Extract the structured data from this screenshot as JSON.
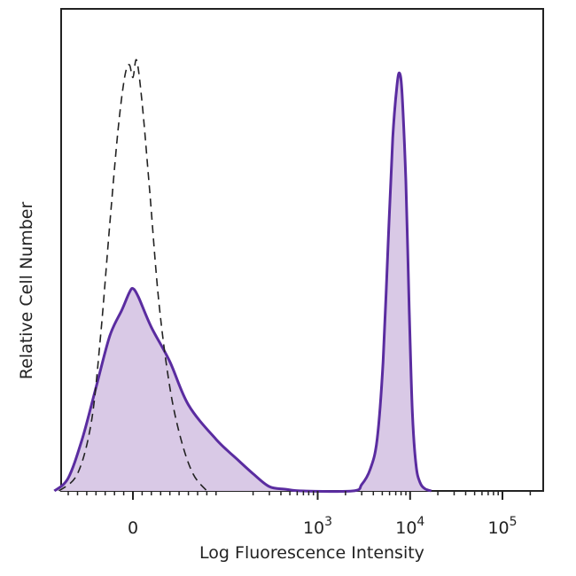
{
  "chart_data": {
    "type": "area",
    "title": "",
    "xlabel": "Log Fluorescence Intensity",
    "ylabel": "Relative Cell Number",
    "x_scale": "biexponential",
    "xlim": [
      -100,
      200000
    ],
    "ylim": [
      0,
      100
    ],
    "grid": false,
    "legend": "none",
    "x_ticks": [
      {
        "value": 0,
        "base": "0",
        "exp": ""
      },
      {
        "value": 1000,
        "base": "10",
        "exp": "3"
      },
      {
        "value": 10000,
        "base": "10",
        "exp": "4"
      },
      {
        "value": 100000,
        "base": "10",
        "exp": "5"
      }
    ],
    "series": [
      {
        "style": "dashed",
        "color": "#222222",
        "points": [
          [
            -80,
            0
          ],
          [
            -60,
            4
          ],
          [
            -45,
            16
          ],
          [
            -35,
            36
          ],
          [
            -25,
            62
          ],
          [
            -16,
            84
          ],
          [
            -9,
            96
          ],
          [
            -4,
            99
          ],
          [
            0,
            96
          ],
          [
            4,
            100
          ],
          [
            10,
            90
          ],
          [
            18,
            70
          ],
          [
            28,
            44
          ],
          [
            40,
            24
          ],
          [
            52,
            12
          ],
          [
            65,
            4
          ],
          [
            80,
            0
          ]
        ]
      },
      {
        "style": "filled",
        "color": "#5a2ca0",
        "fill": "#d9c9e6",
        "points": [
          [
            -85,
            0
          ],
          [
            -70,
            3
          ],
          [
            -55,
            12
          ],
          [
            -40,
            24
          ],
          [
            -25,
            36
          ],
          [
            -12,
            42
          ],
          [
            -4,
            46
          ],
          [
            0,
            47
          ],
          [
            6,
            45
          ],
          [
            20,
            38
          ],
          [
            40,
            30
          ],
          [
            60,
            20
          ],
          [
            90,
            12
          ],
          [
            140,
            7
          ],
          [
            200,
            4
          ],
          [
            300,
            1
          ],
          [
            450,
            0.4
          ],
          [
            700,
            0
          ],
          [
            2400,
            0
          ],
          [
            3000,
            1.5
          ],
          [
            3700,
            5
          ],
          [
            4400,
            12
          ],
          [
            5100,
            30
          ],
          [
            5800,
            58
          ],
          [
            6500,
            82
          ],
          [
            7200,
            94
          ],
          [
            7700,
            97
          ],
          [
            8200,
            92
          ],
          [
            9000,
            72
          ],
          [
            9800,
            42
          ],
          [
            10600,
            18
          ],
          [
            11600,
            6
          ],
          [
            12800,
            2
          ],
          [
            14500,
            0.5
          ],
          [
            17000,
            0
          ]
        ]
      }
    ]
  }
}
